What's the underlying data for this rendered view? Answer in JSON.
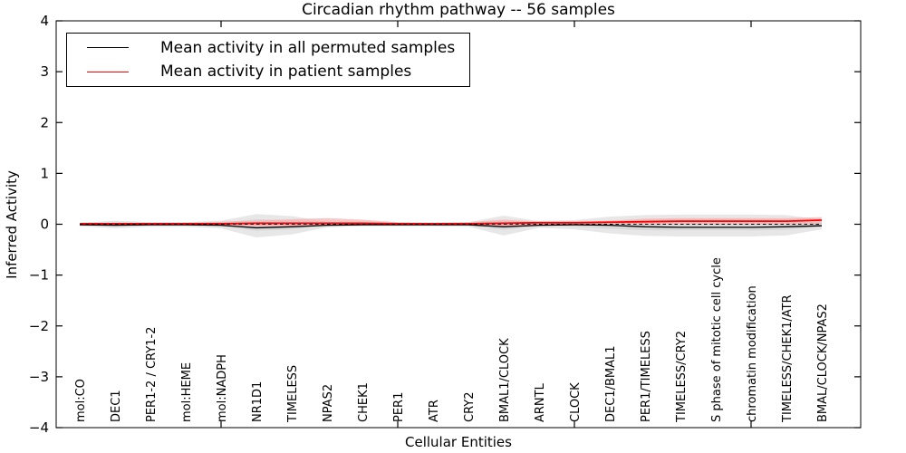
{
  "chart_data": {
    "type": "line",
    "title": "Circadian rhythm pathway -- 56 samples",
    "xlabel": "Cellular Entities",
    "ylabel": "Inferred Activity",
    "ylim": [
      -4,
      4
    ],
    "grid": false,
    "legend_position": "upper left",
    "yticks": [
      4,
      3,
      2,
      1,
      0,
      -1,
      -2,
      -3,
      -4
    ],
    "ytick_labels": [
      "4",
      "3",
      "2",
      "1",
      "0",
      "−1",
      "−2",
      "−3",
      "−4"
    ],
    "xtick_category_indices": [
      4,
      9,
      14,
      19
    ],
    "categories": [
      "mol:CO",
      "DEC1",
      "PER1-2 / CRY1-2",
      "mol:HEME",
      "mol:NADPH",
      "NR1D1",
      "TIMELESS",
      "NPAS2",
      "CHEK1",
      "PER1",
      "ATR",
      "CRY2",
      "BMAL1/CLOCK",
      "ARNTL",
      "CLOCK",
      "DEC1/BMAL1",
      "PER1/TIMELESS",
      "TIMELESS/CRY2",
      "S phase of mitotic cell cycle",
      "chromatin modification",
      "TIMELESS/CHEK1/ATR",
      "BMAL/CLOCK/NPAS2"
    ],
    "series": [
      {
        "name": "Mean activity in all permuted samples",
        "color": "#000000",
        "values": [
          -0.01,
          -0.02,
          -0.01,
          -0.01,
          -0.02,
          -0.07,
          -0.05,
          -0.02,
          -0.01,
          -0.01,
          -0.01,
          -0.01,
          -0.05,
          -0.02,
          -0.01,
          -0.02,
          -0.05,
          -0.06,
          -0.06,
          -0.06,
          -0.05,
          -0.03
        ]
      },
      {
        "name": "Mean activity in patient samples",
        "color": "#ff0000",
        "values": [
          0.01,
          0.01,
          0.01,
          0.01,
          0.01,
          0.02,
          0.02,
          0.02,
          0.02,
          0.01,
          0.01,
          0.01,
          0.02,
          0.03,
          0.03,
          0.04,
          0.05,
          0.06,
          0.06,
          0.06,
          0.06,
          0.08
        ]
      }
    ],
    "bands": [
      {
        "name": "permuted-range-outer",
        "color": "#e7e7e7",
        "upper": [
          0.03,
          0.07,
          0.04,
          0.04,
          0.07,
          0.2,
          0.16,
          0.05,
          0.03,
          0.03,
          0.03,
          0.04,
          0.17,
          0.06,
          0.08,
          0.15,
          0.18,
          0.19,
          0.19,
          0.19,
          0.18,
          0.09
        ],
        "lower": [
          -0.04,
          -0.08,
          -0.05,
          -0.05,
          -0.08,
          -0.26,
          -0.2,
          -0.06,
          -0.04,
          -0.04,
          -0.04,
          -0.05,
          -0.22,
          -0.07,
          -0.1,
          -0.18,
          -0.23,
          -0.24,
          -0.24,
          -0.24,
          -0.22,
          -0.1
        ]
      },
      {
        "name": "permuted-range-inner",
        "color": "#d9d9d9",
        "upper": [
          0.015,
          0.03,
          0.02,
          0.02,
          0.03,
          0.1,
          0.08,
          0.025,
          0.015,
          0.015,
          0.015,
          0.02,
          0.08,
          0.03,
          0.04,
          0.07,
          0.09,
          0.1,
          0.1,
          0.1,
          0.09,
          0.05
        ],
        "lower": [
          -0.02,
          -0.04,
          -0.025,
          -0.025,
          -0.04,
          -0.13,
          -0.1,
          -0.03,
          -0.02,
          -0.02,
          -0.02,
          -0.025,
          -0.11,
          -0.035,
          -0.05,
          -0.09,
          -0.12,
          -0.12,
          -0.12,
          -0.12,
          -0.11,
          -0.05
        ]
      },
      {
        "name": "patient-range",
        "color": "#f5b0b0",
        "upper": [
          0.03,
          0.03,
          0.03,
          0.03,
          0.05,
          0.07,
          0.1,
          0.12,
          0.09,
          0.04,
          0.03,
          0.04,
          0.09,
          0.05,
          0.05,
          0.07,
          0.11,
          0.12,
          0.12,
          0.12,
          0.12,
          0.14
        ],
        "lower": [
          -0.01,
          -0.01,
          -0.01,
          -0.01,
          -0.02,
          -0.04,
          -0.04,
          -0.03,
          -0.02,
          -0.01,
          -0.01,
          -0.02,
          -0.05,
          -0.01,
          -0.01,
          0.0,
          0.0,
          0.0,
          0.0,
          0.0,
          0.0,
          0.01
        ]
      }
    ],
    "zero_line": {
      "y": 0,
      "style": "dashed",
      "color": "#000000"
    }
  },
  "legend": {
    "items": [
      {
        "label": "Mean activity in all permuted samples",
        "color": "#000000"
      },
      {
        "label": "Mean activity in patient samples",
        "color": "#ff0000"
      }
    ]
  }
}
